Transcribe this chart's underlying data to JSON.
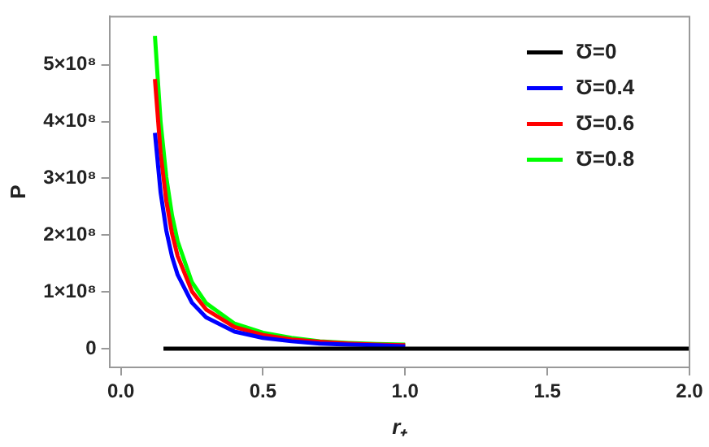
{
  "chart_data": {
    "type": "line",
    "xlabel": "r₊",
    "ylabel": "P",
    "xlim": [
      -0.04,
      2.0
    ],
    "xticks": [
      {
        "value": 0,
        "label": "0.0"
      },
      0.5,
      {
        "value": 1,
        "label": "1.0"
      },
      1.5,
      {
        "value": 2,
        "label": "2.0"
      }
    ],
    "ylim": [
      -33000000,
      585000000
    ],
    "yticks": [
      {
        "value": 0,
        "label": "0"
      },
      {
        "value": 100000000,
        "label": "1×10⁸"
      },
      {
        "value": 200000000,
        "label": "2×10⁸"
      },
      {
        "value": 300000000,
        "label": "3×10⁸"
      },
      {
        "value": 400000000,
        "label": "4×10⁸"
      },
      {
        "value": 500000000,
        "label": "5×10⁸"
      }
    ],
    "legend": "top right",
    "grid": false,
    "marker": "none",
    "line_style": "solid",
    "series": [
      {
        "name": "Ʊ=0",
        "color": "#000000",
        "x": [
          0.15,
          2.0
        ],
        "values": [
          0,
          0
        ]
      },
      {
        "name": "Ʊ=0.4",
        "color": "#0000ff",
        "x": [
          0.12,
          0.14,
          0.16,
          0.18,
          0.2,
          0.25,
          0.3,
          0.4,
          0.5,
          0.6,
          0.7,
          0.8,
          0.9,
          1.0
        ],
        "values": [
          380000000,
          275000000,
          208000000,
          162000000,
          130000000,
          81000000,
          55000000,
          30000000,
          19000000,
          13000000,
          9000000,
          7000000,
          6000000,
          4000000
        ]
      },
      {
        "name": "Ʊ=0.6",
        "color": "#ff0000",
        "x": [
          0.12,
          0.14,
          0.16,
          0.18,
          0.2,
          0.25,
          0.3,
          0.4,
          0.5,
          0.6,
          0.7,
          0.8,
          0.9,
          1.0
        ],
        "values": [
          475000000,
          344000000,
          260000000,
          203000000,
          163000000,
          101000000,
          69000000,
          38000000,
          24000000,
          16000000,
          12000000,
          9000000,
          7000000,
          6000000
        ]
      },
      {
        "name": "Ʊ=0.8",
        "color": "#00ff00",
        "x": [
          0.12,
          0.14,
          0.16,
          0.18,
          0.2,
          0.25,
          0.3,
          0.4,
          0.5,
          0.6,
          0.7,
          0.8,
          0.9,
          1.0
        ],
        "values": [
          551000000,
          399000000,
          302000000,
          235000000,
          189000000,
          117000000,
          80000000,
          44000000,
          28000000,
          19000000,
          13000000,
          10000000,
          8000000,
          7000000
        ]
      }
    ]
  }
}
